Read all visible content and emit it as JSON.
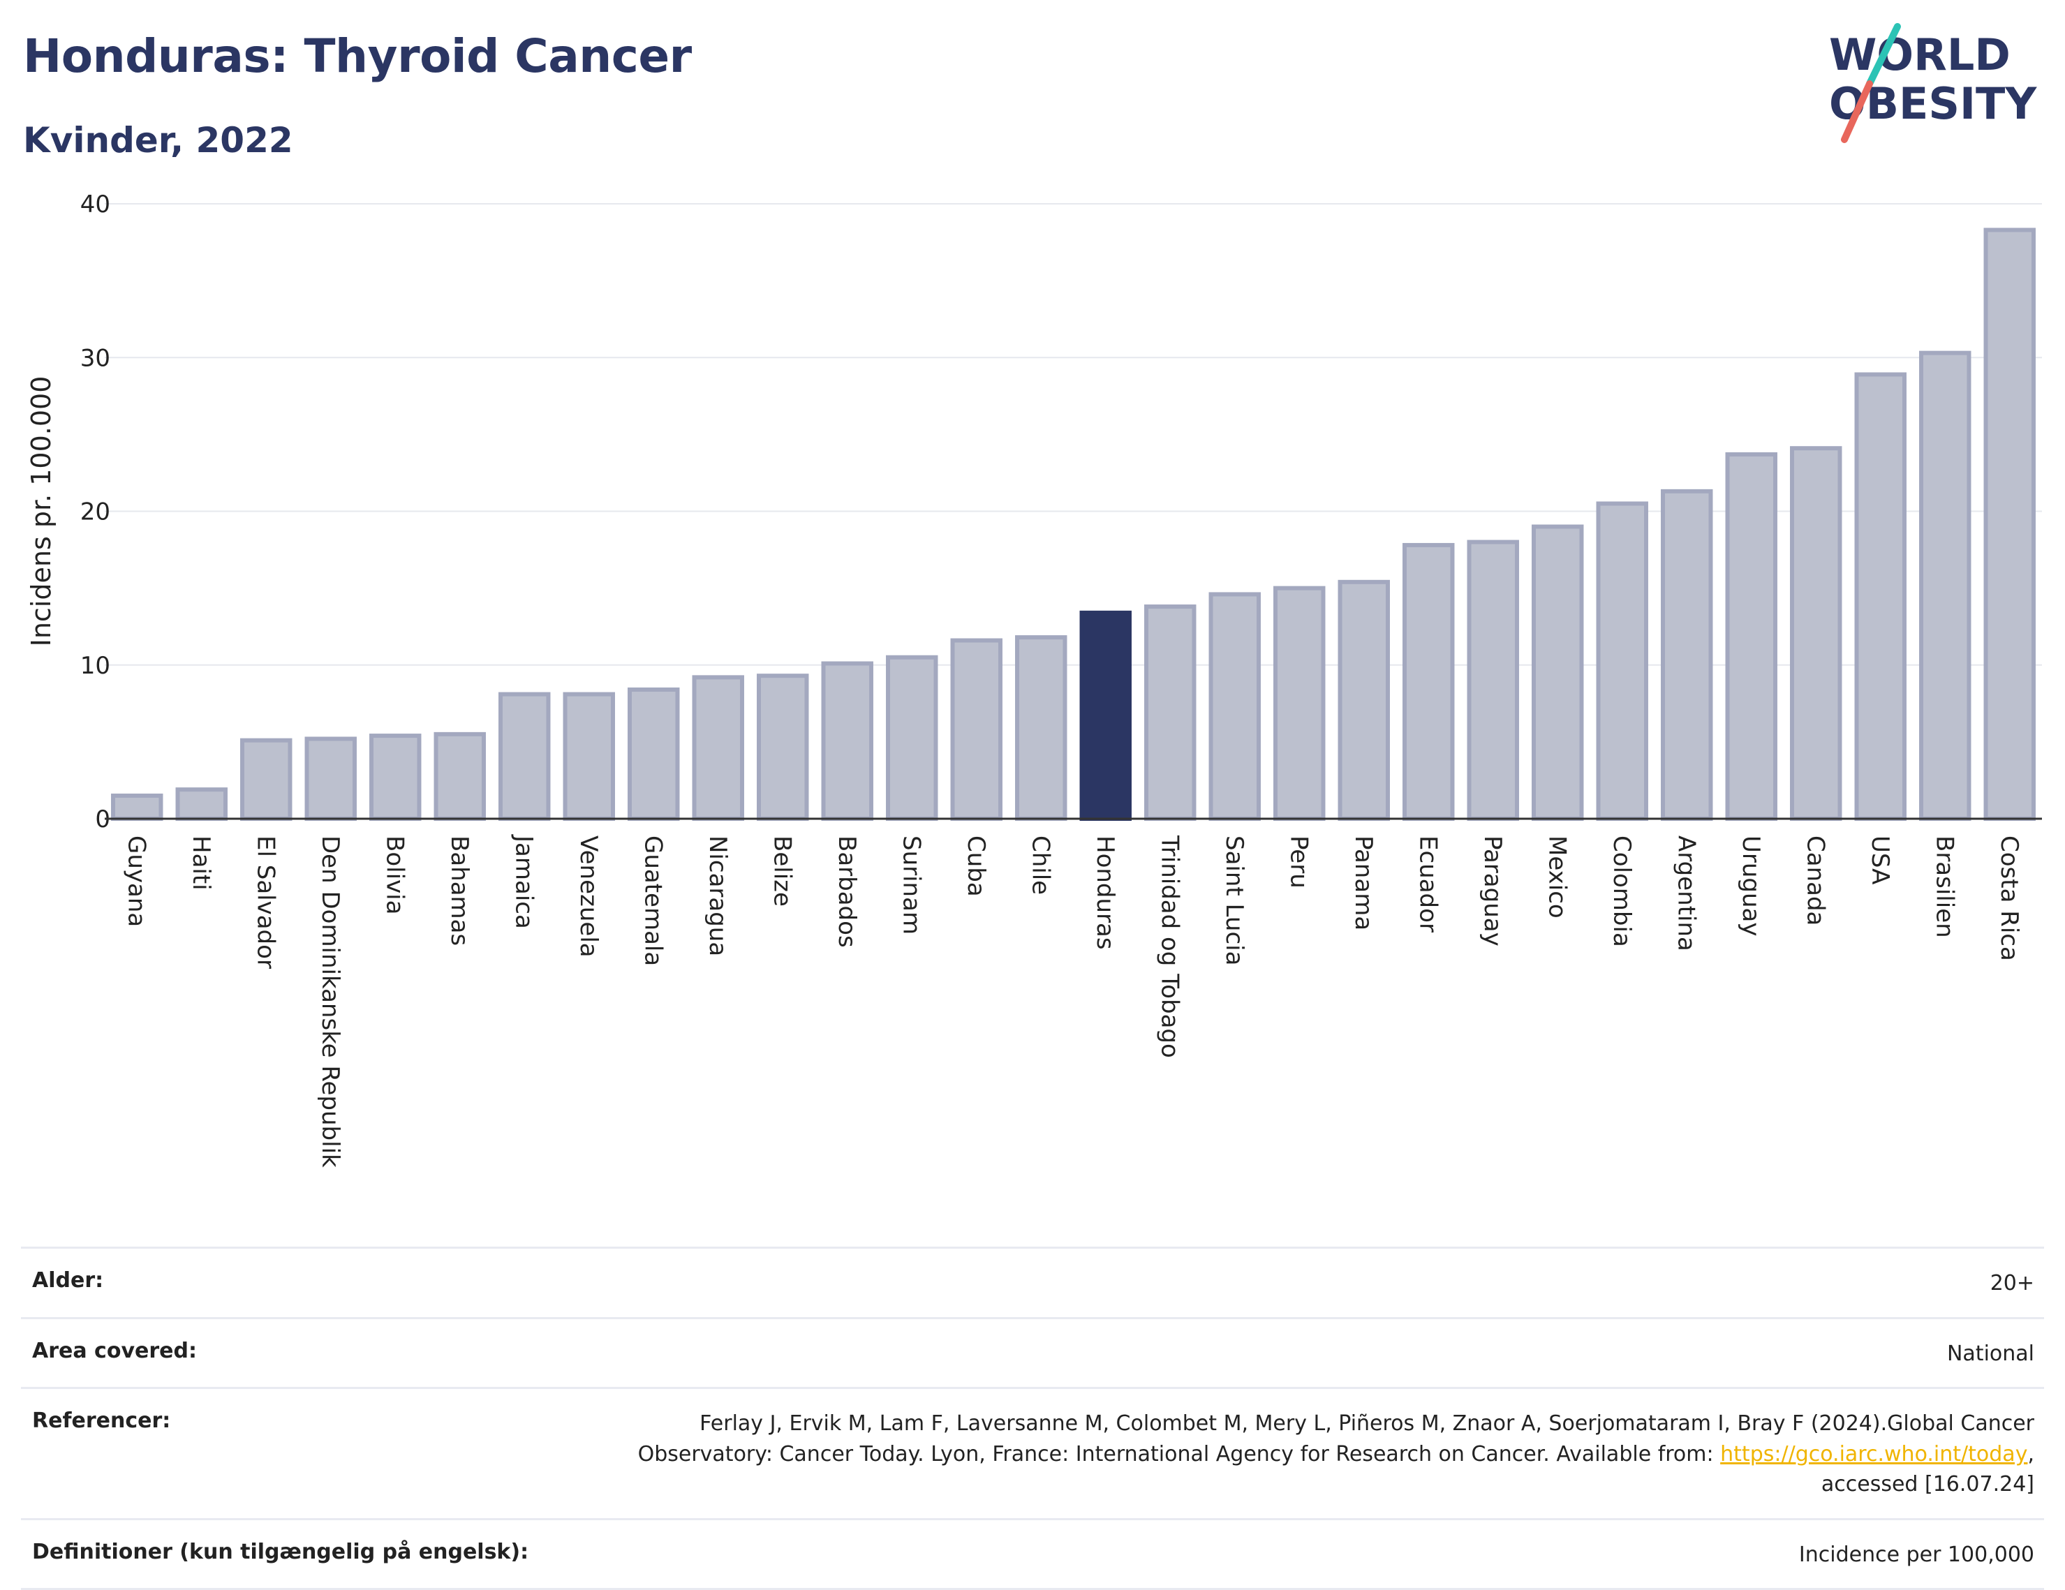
{
  "header": {
    "title": "Honduras: Thyroid Cancer",
    "subtitle": "Kvinder, 2022",
    "logo_text": "WORLD OBESITY"
  },
  "colors": {
    "highlight_bar": "#2b3663",
    "default_bar_fill": "#bcc0ce",
    "default_bar_stroke": "#a3a8bf",
    "title": "#2b3663",
    "link": "#f0b400"
  },
  "chart_data": {
    "type": "bar",
    "ylabel": "Incidens pr. 100.000",
    "ylim": [
      0,
      40
    ],
    "yticks": [
      0,
      10,
      20,
      30,
      40
    ],
    "grid": true,
    "highlight": "Honduras",
    "categories": [
      "Guyana",
      "Haiti",
      "El Salvador",
      "Den Dominikanske Republik",
      "Bolivia",
      "Bahamas",
      "Jamaica",
      "Venezuela",
      "Guatemala",
      "Nicaragua",
      "Belize",
      "Barbados",
      "Surinam",
      "Cuba",
      "Chile",
      "Honduras",
      "Trinidad og Tobago",
      "Saint Lucia",
      "Peru",
      "Panama",
      "Ecuador",
      "Paraguay",
      "Mexico",
      "Colombia",
      "Argentina",
      "Uruguay",
      "Canada",
      "USA",
      "Brasilien",
      "Costa Rica"
    ],
    "values": [
      1.5,
      1.9,
      5.1,
      5.2,
      5.4,
      5.5,
      8.1,
      8.1,
      8.4,
      9.2,
      9.3,
      10.1,
      10.5,
      11.6,
      11.8,
      13.4,
      13.8,
      14.6,
      15.0,
      15.4,
      17.8,
      18.0,
      19.0,
      20.5,
      21.3,
      23.7,
      24.1,
      28.9,
      30.3,
      38.3
    ]
  },
  "meta": [
    {
      "label": "Alder:",
      "value": "20+"
    },
    {
      "label": "Area covered:",
      "value": "National"
    },
    {
      "label": "Referencer:",
      "value_before": "Ferlay J, Ervik M, Lam F, Laversanne M, Colombet M, Mery L, Piñeros M, Znaor A, Soerjomataram I, Bray F (2024).Global Cancer Observatory: Cancer Today. Lyon, France: International Agency for Research on Cancer. Available from: ",
      "link": "https://gco.iarc.who.int/today",
      "value_after": ", accessed [16.07.24]"
    },
    {
      "label": "Definitioner (kun tilgængelig på engelsk):",
      "value": "Incidence per 100,000"
    }
  ]
}
